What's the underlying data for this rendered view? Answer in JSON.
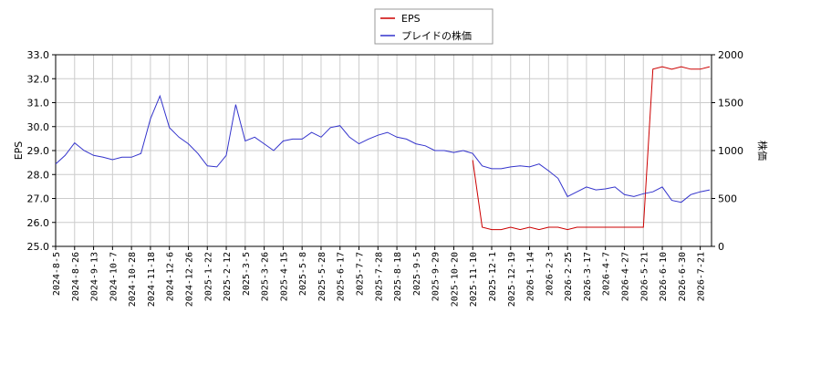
{
  "chart_data": {
    "type": "line",
    "y_label": "EPS",
    "y2_label": "株価",
    "x": [
      "2024-8-5",
      null,
      "2024-8-26",
      null,
      "2024-9-13",
      null,
      "2024-10-7",
      null,
      "2024-10-28",
      null,
      "2024-11-18",
      null,
      "2024-12-6",
      null,
      "2024-12-26",
      null,
      "2025-1-22",
      null,
      "2025-2-12",
      null,
      "2025-3-5",
      null,
      "2025-3-26",
      null,
      "2025-4-15",
      null,
      "2025-5-8",
      null,
      "2025-5-28",
      null,
      "2025-6-17",
      null,
      "2025-7-7",
      null,
      "2025-7-28",
      null,
      "2025-8-18",
      null,
      "2025-9-5",
      null,
      "2025-9-29",
      null,
      "2025-10-20",
      null,
      "2025-11-10",
      null,
      "2025-12-1",
      null,
      "2025-12-19",
      null,
      "2026-1-14",
      null,
      "2026-2-3",
      null,
      "2026-2-25",
      null,
      "2026-3-17",
      null,
      "2026-4-7",
      null,
      "2026-4-27",
      null,
      "2026-5-21",
      null,
      "2026-6-10",
      null,
      "2026-6-30",
      null,
      "2026-7-21",
      null
    ],
    "series": [
      {
        "name": "EPS",
        "color": "#cc0000",
        "axis": "y",
        "values": [
          null,
          null,
          null,
          null,
          null,
          null,
          null,
          null,
          null,
          null,
          null,
          null,
          null,
          null,
          null,
          null,
          null,
          null,
          null,
          null,
          null,
          null,
          null,
          null,
          null,
          null,
          null,
          null,
          null,
          null,
          null,
          null,
          null,
          null,
          null,
          null,
          null,
          null,
          null,
          null,
          null,
          null,
          null,
          null,
          28.6,
          25.8,
          25.7,
          25.7,
          25.8,
          25.7,
          25.8,
          25.7,
          25.8,
          25.8,
          25.7,
          25.8,
          25.8,
          25.8,
          25.8,
          25.8,
          25.8,
          25.8,
          25.8,
          32.4,
          32.5,
          32.4,
          32.5,
          32.4,
          32.4,
          32.5
        ]
      },
      {
        "name": "プレイドの株価",
        "color": "#3333cc",
        "axis": "y2",
        "values": [
          860,
          950,
          1080,
          1000,
          950,
          930,
          905,
          930,
          930,
          970,
          1330,
          1570,
          1240,
          1140,
          1070,
          970,
          840,
          830,
          950,
          1480,
          1100,
          1140,
          1070,
          1000,
          1100,
          1120,
          1120,
          1190,
          1140,
          1240,
          1260,
          1140,
          1070,
          1120,
          1160,
          1190,
          1140,
          1120,
          1070,
          1050,
          1000,
          1000,
          980,
          1000,
          970,
          840,
          810,
          810,
          830,
          840,
          830,
          860,
          790,
          710,
          520,
          570,
          620,
          590,
          600,
          620,
          540,
          520,
          550,
          570,
          620,
          480,
          460,
          540,
          570,
          590
        ]
      }
    ],
    "ylim": [
      25,
      33
    ],
    "yticks": [
      {
        "value": 25,
        "label": "25.0"
      },
      {
        "value": 26,
        "label": "26.0"
      },
      {
        "value": 27,
        "label": "27.0"
      },
      {
        "value": 28,
        "label": "28.0"
      },
      {
        "value": 29,
        "label": "29.0"
      },
      {
        "value": 30,
        "label": "30.0"
      },
      {
        "value": 31,
        "label": "31.0"
      },
      {
        "value": 32,
        "label": "32.0"
      },
      {
        "value": 33,
        "label": "33.0"
      }
    ],
    "y2lim": [
      0,
      2000
    ],
    "y2ticks": [
      0,
      500,
      1000,
      1500,
      2000
    ],
    "grid": true,
    "legend": "top"
  }
}
